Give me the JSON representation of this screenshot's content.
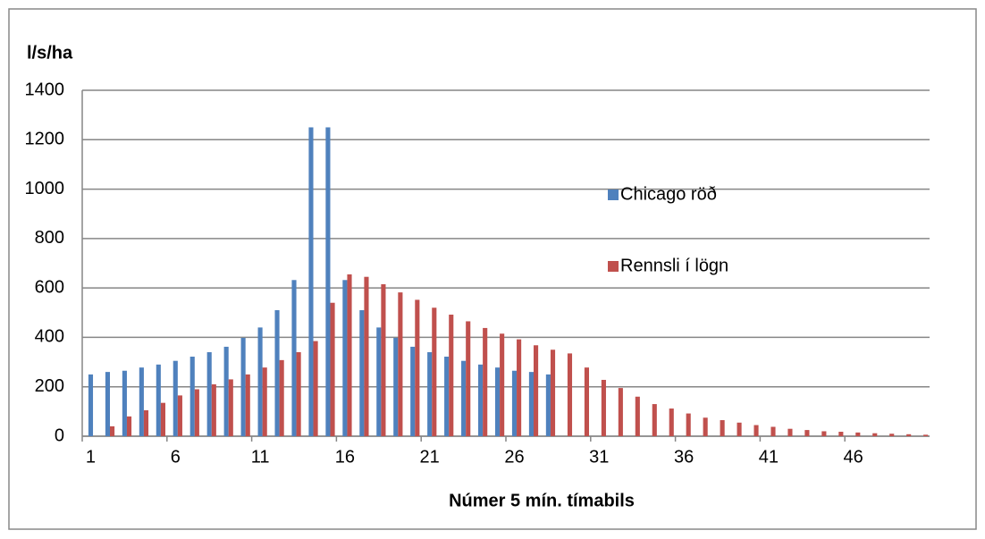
{
  "chart_data": {
    "type": "bar",
    "ylabel": "l/s/ha",
    "xlabel": "Númer 5 mín. tímabils",
    "categories": [
      "1",
      null,
      null,
      null,
      null,
      "6",
      null,
      null,
      null,
      null,
      "11",
      null,
      null,
      null,
      null,
      "16",
      null,
      null,
      null,
      null,
      "21",
      null,
      null,
      null,
      null,
      "26",
      null,
      null,
      null,
      null,
      "31",
      null,
      null,
      null,
      null,
      "36",
      null,
      null,
      null,
      null,
      "41",
      null,
      null,
      null,
      null,
      "46",
      null,
      null,
      null,
      null
    ],
    "series": [
      {
        "name": "Chicago röð",
        "color": "#4f81bd",
        "values": [
          250,
          260,
          265,
          278,
          290,
          305,
          322,
          340,
          362,
          398,
          440,
          510,
          632,
          1250,
          1250,
          632,
          510,
          440,
          398,
          362,
          340,
          322,
          305,
          290,
          278,
          265,
          260,
          250,
          null,
          null,
          null,
          null,
          null,
          null,
          null,
          null,
          null,
          null,
          null,
          null,
          null,
          null,
          null,
          null,
          null,
          null,
          null,
          null,
          null,
          null
        ]
      },
      {
        "name": "Rennsli í lögn",
        "color": "#c0504d",
        "values": [
          null,
          40,
          80,
          105,
          135,
          165,
          190,
          210,
          230,
          250,
          278,
          308,
          340,
          385,
          540,
          655,
          645,
          615,
          582,
          552,
          520,
          492,
          465,
          438,
          415,
          392,
          368,
          350,
          335,
          278,
          228,
          195,
          160,
          130,
          112,
          92,
          75,
          65,
          55,
          45,
          38,
          30,
          25,
          20,
          18,
          15,
          12,
          10,
          8,
          6
        ]
      }
    ],
    "ylim": [
      0,
      1400
    ],
    "yticks": [
      0,
      200,
      400,
      600,
      800,
      1000,
      1200,
      1400
    ],
    "grid": true,
    "legend": "right"
  }
}
